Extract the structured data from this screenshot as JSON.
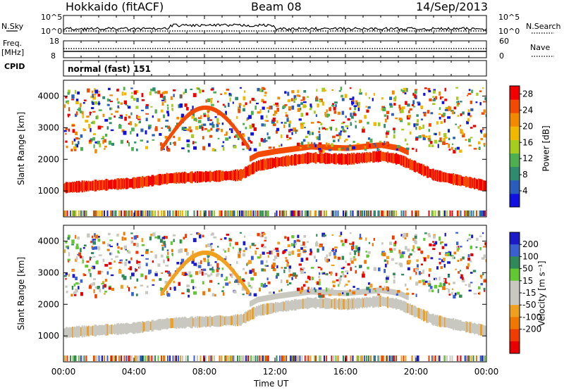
{
  "header": {
    "station": "Hokkaido (fitACF)",
    "beam": "Beam 08",
    "date": "14/Sep/2013"
  },
  "strips": {
    "nsky_label": "N.Sky",
    "nsky_ticks": [
      "10^5",
      "10^0"
    ],
    "nsearch_label": "N.Search",
    "nsearch_ticks": [
      "10^5",
      "10^0"
    ],
    "freq_label": "Freq.",
    "freq_unit": "[MHz]",
    "freq_ticks": [
      "18",
      "8"
    ],
    "nave_label": "Nave",
    "nave_ticks": [
      "60",
      "0"
    ],
    "cpid_label": "CPID",
    "cpid_value": "normal (fast) 151"
  },
  "colors": {
    "power_scale": [
      "#1010e0",
      "#2a5dbb",
      "#2e8b6e",
      "#4caf50",
      "#a6cc1e",
      "#f2b800",
      "#f28a00",
      "#f24a00",
      "#f20000"
    ],
    "velocity_scale": [
      "#1a1ac8",
      "#3a5fd0",
      "#2e8b57",
      "#62c832",
      "#c8c8c0",
      "#c8c8c0",
      "#f0a01e",
      "#f07800",
      "#f03c00",
      "#e60000"
    ]
  },
  "chart_data": [
    {
      "type": "heatmap",
      "title": "Power",
      "ylabel": "Slant Range [km]",
      "xlabel": "",
      "x_ticks": [
        "00:00",
        "04:00",
        "08:00",
        "12:00",
        "16:00",
        "20:00",
        "00:00"
      ],
      "y_ticks": [
        1000,
        2000,
        3000,
        4000
      ],
      "ylim": [
        180,
        4500
      ],
      "xlim_hours": [
        0,
        24
      ],
      "colorbar_label": "Power [dB]",
      "colorbar_ticks": [
        4,
        8,
        12,
        16,
        20,
        24,
        28
      ],
      "colorbar_range": [
        0,
        30
      ],
      "echo_band_center_km": [
        [
          0,
          1100
        ],
        [
          2,
          1180
        ],
        [
          4,
          1250
        ],
        [
          6,
          1400
        ],
        [
          8,
          1450
        ],
        [
          10,
          1500
        ],
        [
          11,
          1800
        ],
        [
          12,
          1900
        ],
        [
          14,
          2050
        ],
        [
          16,
          2000
        ],
        [
          18,
          2100
        ],
        [
          19,
          2000
        ],
        [
          21,
          1500
        ],
        [
          24,
          1150
        ]
      ]
    },
    {
      "type": "heatmap",
      "title": "Velocity",
      "ylabel": "Slant Range [km]",
      "xlabel": "Time UT",
      "x_ticks": [
        "00:00",
        "04:00",
        "08:00",
        "12:00",
        "16:00",
        "20:00",
        "00:00"
      ],
      "y_ticks": [
        1000,
        2000,
        3000,
        4000
      ],
      "ylim": [
        180,
        4500
      ],
      "xlim_hours": [
        0,
        24
      ],
      "colorbar_label": "Velocity [m s⁻¹]",
      "colorbar_ticks": [
        200,
        100,
        50,
        15,
        -15,
        -50,
        -100,
        -200
      ]
    }
  ]
}
